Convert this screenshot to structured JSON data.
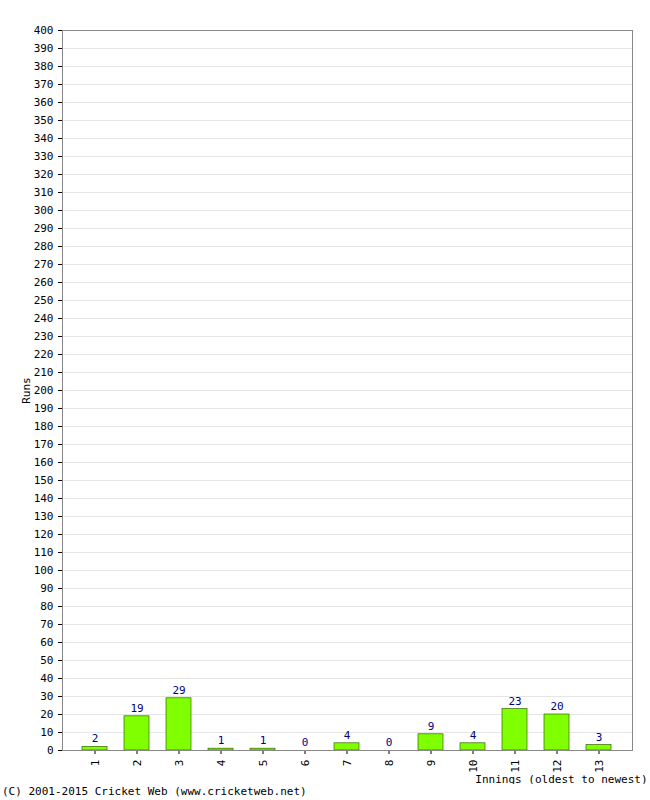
{
  "chart_data": {
    "type": "bar",
    "categories": [
      "1",
      "2",
      "3",
      "4",
      "5",
      "6",
      "7",
      "8",
      "9",
      "10",
      "11",
      "12",
      "13"
    ],
    "values": [
      2,
      19,
      29,
      1,
      1,
      0,
      4,
      0,
      9,
      4,
      23,
      20,
      3
    ],
    "color": "#80ff00",
    "ylabel": "Runs",
    "xlabel": "Innings (oldest to newest)",
    "caption": "(C) 2001-2015 Cricket Web (www.cricketweb.net)",
    "ylim": [
      0,
      400
    ],
    "yticks": [
      0,
      10,
      20,
      30,
      40,
      50,
      60,
      70,
      80,
      90,
      100,
      110,
      120,
      130,
      140,
      150,
      160,
      170,
      180,
      190,
      200,
      210,
      220,
      230,
      240,
      250,
      260,
      270,
      280,
      290,
      300,
      310,
      320,
      330,
      340,
      350,
      360,
      370,
      380,
      390,
      400
    ],
    "grid": true,
    "data_labels": true
  }
}
